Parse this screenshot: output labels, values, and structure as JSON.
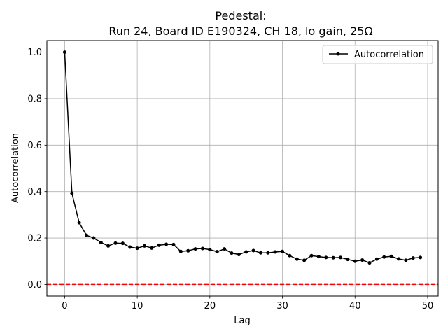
{
  "chart_data": {
    "type": "line",
    "title_line1": "Pedestal:",
    "title_line2": "Run 24, Board ID E190324, CH 18, lo gain, 25Ω",
    "xlabel": "Lag",
    "ylabel": "Autocorrelation",
    "xlim": [
      -2.45,
      51.45
    ],
    "ylim": [
      -0.05,
      1.05
    ],
    "xticks": [
      0,
      10,
      20,
      30,
      40,
      50
    ],
    "yticks": [
      0.0,
      0.2,
      0.4,
      0.6,
      0.8,
      1.0
    ],
    "xtick_labels": [
      "0",
      "10",
      "20",
      "30",
      "40",
      "50"
    ],
    "ytick_labels": [
      "0.0",
      "0.2",
      "0.4",
      "0.6",
      "0.8",
      "1.0"
    ],
    "grid": true,
    "legend_position": "top-right",
    "series": [
      {
        "name": "Autocorrelation",
        "color": "#000000",
        "marker": "circle",
        "x": [
          0,
          1,
          2,
          3,
          4,
          5,
          6,
          7,
          8,
          9,
          10,
          11,
          12,
          13,
          14,
          15,
          16,
          17,
          18,
          19,
          20,
          21,
          22,
          23,
          24,
          25,
          26,
          27,
          28,
          29,
          30,
          31,
          32,
          33,
          34,
          35,
          36,
          37,
          38,
          39,
          40,
          41,
          42,
          43,
          44,
          45,
          46,
          47,
          48,
          49
        ],
        "values": [
          1.0,
          0.393,
          0.266,
          0.212,
          0.2,
          0.181,
          0.166,
          0.178,
          0.177,
          0.161,
          0.156,
          0.166,
          0.157,
          0.169,
          0.173,
          0.172,
          0.142,
          0.145,
          0.153,
          0.155,
          0.15,
          0.141,
          0.153,
          0.135,
          0.129,
          0.14,
          0.146,
          0.136,
          0.136,
          0.14,
          0.142,
          0.124,
          0.109,
          0.104,
          0.124,
          0.12,
          0.116,
          0.115,
          0.116,
          0.108,
          0.1,
          0.105,
          0.093,
          0.109,
          0.118,
          0.121,
          0.11,
          0.104,
          0.114,
          0.116
        ]
      }
    ],
    "reference_line": {
      "y": 0.0,
      "color": "#ff0000",
      "style": "dashed"
    }
  }
}
